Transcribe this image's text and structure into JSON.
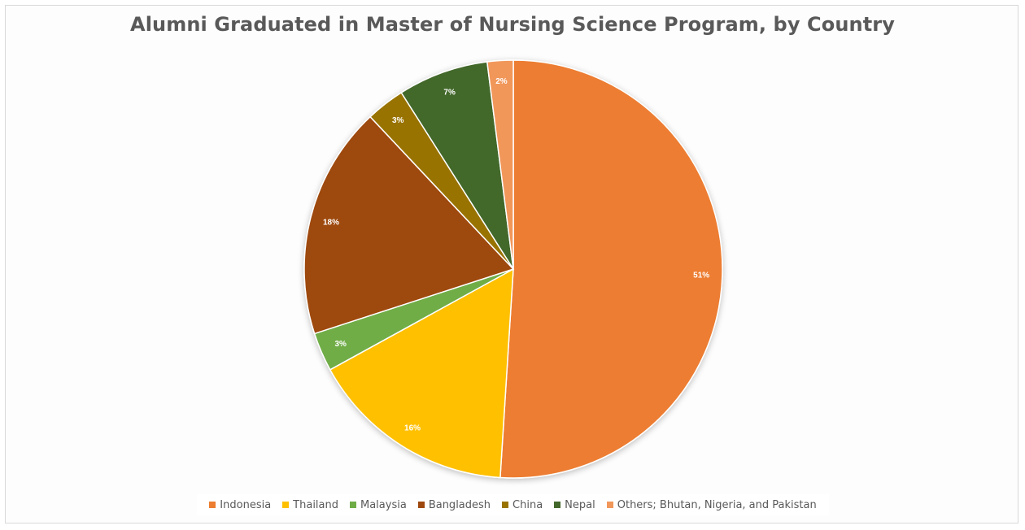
{
  "chart_data": {
    "type": "pie",
    "title": "Alumni Graduated in Master of Nursing Science Program, by Country",
    "categories": [
      "Indonesia",
      "Thailand",
      "Malaysia",
      "Bangladesh",
      "China",
      "Nepal",
      "Others; Bhutan, Nigeria, and Pakistan"
    ],
    "values": [
      51,
      16,
      3,
      18,
      3,
      7,
      2
    ],
    "data_labels": [
      "51%",
      "16%",
      "3%",
      "18%",
      "3%",
      "7%",
      "2%"
    ],
    "colors": [
      "#ED7D31",
      "#FFC000",
      "#70AD47",
      "#9E480E",
      "#997300",
      "#43682B",
      "#F1975A"
    ],
    "legend_position": "bottom",
    "start_angle": "12 o'clock",
    "direction": "clockwise"
  }
}
